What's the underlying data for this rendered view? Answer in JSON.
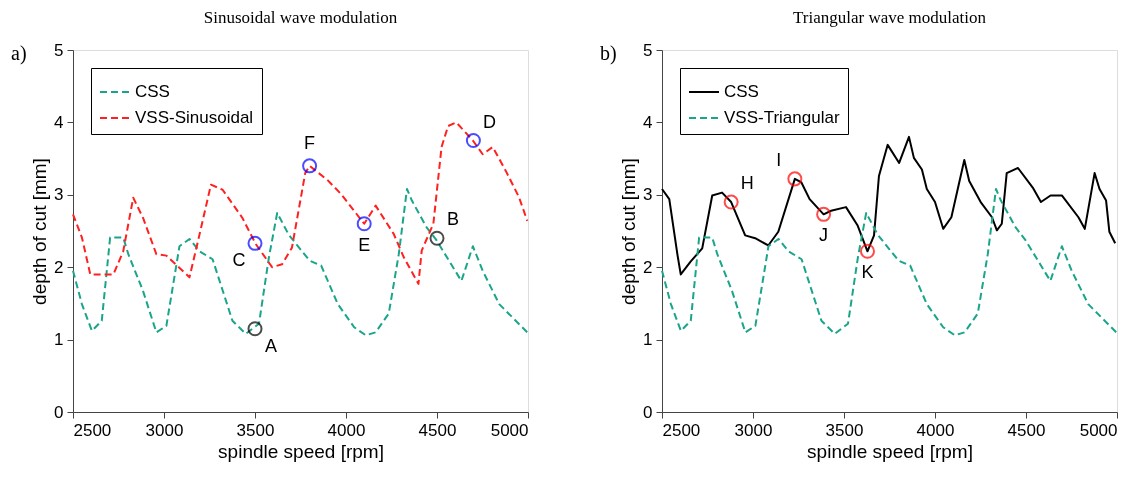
{
  "chart_data": [
    {
      "type": "line",
      "title": "Sinusoidal wave modulation",
      "xlabel": "spindle speed [rpm]",
      "ylabel": "depth of cut [mm]",
      "xlim": [
        2500,
        5000
      ],
      "ylim": [
        0,
        5
      ],
      "xticks": [
        2500,
        3000,
        3500,
        4000,
        4500,
        5000
      ],
      "yticks": [
        0,
        1,
        2,
        3,
        4,
        5
      ],
      "grid": false,
      "legend": "top left",
      "series": [
        {
          "name": "CSS",
          "color": "#1aa58a",
          "line_style": "dashed",
          "x": [
            2500,
            2549,
            2604,
            2658,
            2704,
            2776,
            2804,
            2885,
            2958,
            3013,
            3085,
            3140,
            3195,
            3267,
            3376,
            3449,
            3522,
            3576,
            3622,
            3685,
            3758,
            3801,
            3864,
            3955,
            4045,
            4109,
            4163,
            4235,
            4290,
            4335,
            4362,
            4443,
            4498,
            4634,
            4697,
            4751,
            4842,
            4996
          ],
          "values": [
            1.95,
            1.49,
            1.12,
            1.26,
            2.41,
            2.41,
            2.18,
            1.67,
            1.1,
            1.19,
            2.29,
            2.39,
            2.22,
            2.11,
            1.26,
            1.08,
            1.22,
            2.13,
            2.75,
            2.45,
            2.22,
            2.09,
            2.02,
            1.49,
            1.17,
            1.06,
            1.1,
            1.36,
            2.18,
            3.08,
            2.92,
            2.55,
            2.37,
            1.81,
            2.29,
            1.95,
            1.49,
            1.1
          ]
        },
        {
          "name": "VSS-Sinusoidal",
          "color": "#ff2020",
          "line_style": "dashed",
          "x": [
            2500,
            2549,
            2595,
            2722,
            2776,
            2831,
            2885,
            2958,
            3013,
            3140,
            3195,
            3258,
            3322,
            3431,
            3504,
            3594,
            3649,
            3703,
            3776,
            3800,
            3900,
            3973,
            4100,
            4163,
            4262,
            4317,
            4398,
            4416,
            4480,
            4525,
            4561,
            4606,
            4697,
            4751,
            4806,
            4878,
            4950,
            4996
          ],
          "values": [
            2.73,
            2.41,
            1.9,
            1.9,
            2.22,
            2.96,
            2.68,
            2.18,
            2.16,
            1.86,
            2.45,
            3.14,
            3.07,
            2.68,
            2.32,
            2.0,
            2.04,
            2.27,
            3.3,
            3.4,
            3.2,
            3.01,
            2.6,
            2.85,
            2.46,
            2.14,
            1.77,
            2.23,
            2.6,
            3.66,
            3.95,
            4.0,
            3.75,
            3.56,
            3.66,
            3.33,
            2.97,
            2.64
          ]
        },
        {
          "type": "scatter",
          "color": "#000000",
          "marker": "circle",
          "x": [
            3500,
            4500
          ],
          "values": [
            1.15,
            2.4
          ]
        },
        {
          "type": "scatter",
          "color": "#0000ff",
          "marker": "circle",
          "x": [
            3500,
            4700,
            4100,
            3800
          ],
          "values": [
            2.33,
            3.75,
            2.6,
            3.4
          ]
        }
      ],
      "annotations": [
        "a)",
        {
          "text": "A",
          "x": 3500,
          "y": 1.15
        },
        {
          "text": "B",
          "x": 4500,
          "y": 2.4
        },
        {
          "text": "C",
          "x": 3500,
          "y": 2.33
        },
        {
          "text": "D",
          "x": 4700,
          "y": 3.75
        },
        {
          "text": "E",
          "x": 4100,
          "y": 2.6
        },
        {
          "text": "F",
          "x": 3800,
          "y": 3.4
        }
      ]
    },
    {
      "type": "line",
      "title": "Triangular wave modulation",
      "xlabel": "spindle speed [rpm]",
      "ylabel": "depth of cut [mm]",
      "xlim": [
        2500,
        5000
      ],
      "ylim": [
        0,
        5
      ],
      "xticks": [
        2500,
        3000,
        3500,
        4000,
        4500,
        5000
      ],
      "yticks": [
        0,
        1,
        2,
        3,
        4,
        5
      ],
      "grid": false,
      "legend": "top left",
      "series": [
        {
          "name": "CSS",
          "color": "#000000",
          "line_style": "solid",
          "x": [
            2500,
            2540,
            2585,
            2603,
            2658,
            2721,
            2776,
            2830,
            2880,
            2957,
            3012,
            3084,
            3139,
            3230,
            3266,
            3311,
            3388,
            3429,
            3511,
            3574,
            3629,
            3665,
            3692,
            3740,
            3803,
            3857,
            3884,
            3928,
            3955,
            4000,
            4045,
            4090,
            4161,
            4188,
            4251,
            4313,
            4340,
            4367,
            4394,
            4456,
            4537,
            4582,
            4635,
            4698,
            4788,
            4823,
            4877,
            4904,
            4940,
            4958,
            4990
          ],
          "values": [
            3.08,
            2.94,
            2.17,
            1.9,
            2.08,
            2.26,
            2.99,
            3.03,
            2.9,
            2.44,
            2.4,
            2.3,
            2.49,
            3.22,
            3.17,
            2.94,
            2.73,
            2.78,
            2.83,
            2.58,
            2.22,
            2.44,
            3.26,
            3.69,
            3.44,
            3.8,
            3.51,
            3.35,
            3.08,
            2.9,
            2.53,
            2.69,
            3.48,
            3.19,
            2.9,
            2.69,
            2.51,
            2.6,
            3.3,
            3.37,
            3.1,
            2.9,
            2.99,
            2.99,
            2.69,
            2.53,
            3.3,
            3.08,
            2.92,
            2.49,
            2.33
          ]
        },
        {
          "name": "VSS-Triangular",
          "color": "#1aa58a",
          "line_style": "dashed",
          "x": [
            2500,
            2549,
            2604,
            2658,
            2704,
            2776,
            2804,
            2885,
            2958,
            3013,
            3085,
            3140,
            3195,
            3267,
            3376,
            3449,
            3522,
            3576,
            3622,
            3685,
            3758,
            3801,
            3864,
            3955,
            4045,
            4109,
            4163,
            4235,
            4290,
            4335,
            4362,
            4443,
            4498,
            4634,
            4697,
            4751,
            4842,
            4996
          ],
          "values": [
            1.95,
            1.49,
            1.12,
            1.26,
            2.41,
            2.41,
            2.18,
            1.67,
            1.1,
            1.19,
            2.29,
            2.39,
            2.22,
            2.11,
            1.26,
            1.08,
            1.22,
            2.13,
            2.75,
            2.45,
            2.22,
            2.09,
            2.02,
            1.49,
            1.17,
            1.06,
            1.1,
            1.36,
            2.18,
            3.08,
            2.92,
            2.55,
            2.37,
            1.81,
            2.29,
            1.95,
            1.49,
            1.1
          ]
        },
        {
          "type": "scatter",
          "color": "#ff0000",
          "marker": "circle",
          "x": [
            2880,
            3230,
            3388,
            3629
          ],
          "values": [
            2.9,
            3.22,
            2.73,
            2.22
          ]
        }
      ],
      "annotations": [
        "b)",
        {
          "text": "H",
          "x": 2880,
          "y": 2.9
        },
        {
          "text": "I",
          "x": 3230,
          "y": 3.22
        },
        {
          "text": "J",
          "x": 3388,
          "y": 2.73
        },
        {
          "text": "K",
          "x": 3629,
          "y": 2.22
        }
      ]
    }
  ]
}
